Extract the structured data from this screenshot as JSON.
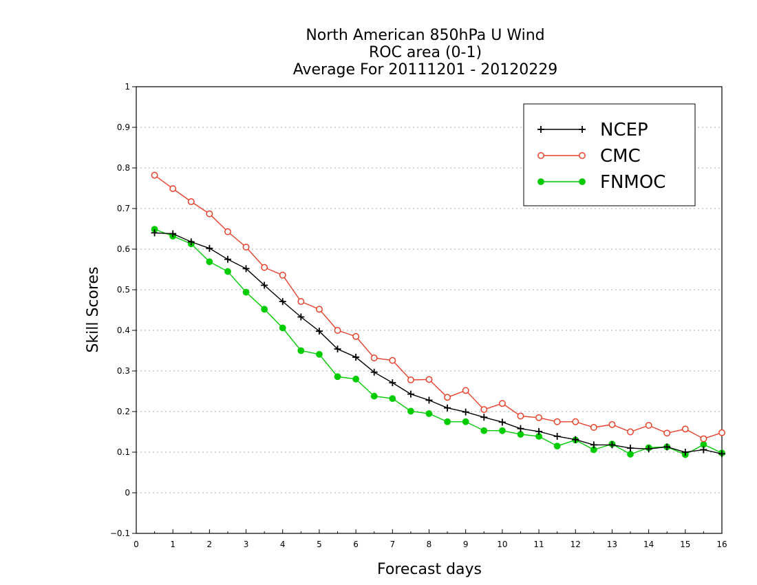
{
  "chart_data": {
    "type": "line",
    "title_lines": [
      "North American 850hPa U Wind",
      "ROC area (0-1)",
      "Average For 20111201 - 20120229"
    ],
    "xlabel": "Forecast days",
    "ylabel": "Skill Scores",
    "xlim": [
      0,
      16
    ],
    "ylim": [
      -0.1,
      1
    ],
    "x_ticks": [
      "0",
      "1",
      "2",
      "3",
      "4",
      "5",
      "6",
      "7",
      "8",
      "9",
      "10",
      "11",
      "12",
      "13",
      "14",
      "15",
      "16"
    ],
    "y_ticks": [
      "−0.1",
      "0",
      "0.1",
      "0.2",
      "0.3",
      "0.4",
      "0.5",
      "0.6",
      "0.7",
      "0.8",
      "0.9",
      "1"
    ],
    "y_tick_values": [
      -0.1,
      0,
      0.1,
      0.2,
      0.3,
      0.4,
      0.5,
      0.6,
      0.7,
      0.8,
      0.9,
      1
    ],
    "grid": "horizontal dotted",
    "legend_position": "top-right",
    "x": [
      0.5,
      1,
      1.5,
      2,
      2.5,
      3,
      3.5,
      4,
      4.5,
      5,
      5.5,
      6,
      6.5,
      7,
      7.5,
      8,
      8.5,
      9,
      9.5,
      10,
      10.5,
      11,
      11.5,
      12,
      12.5,
      13,
      13.5,
      14,
      14.5,
      15,
      15.5,
      16
    ],
    "series": [
      {
        "name": "NCEP",
        "color": "#000000",
        "marker": "plus",
        "values": [
          0.64,
          0.638,
          0.618,
          0.602,
          0.575,
          0.552,
          0.511,
          0.471,
          0.433,
          0.398,
          0.354,
          0.334,
          0.297,
          0.271,
          0.243,
          0.228,
          0.209,
          0.199,
          0.186,
          0.174,
          0.158,
          0.151,
          0.139,
          0.131,
          0.118,
          0.118,
          0.11,
          0.108,
          0.113,
          0.1,
          0.106,
          0.096
        ]
      },
      {
        "name": "CMC",
        "color": "#e8402a",
        "marker": "open-circle",
        "values": [
          0.782,
          0.749,
          0.717,
          0.687,
          0.643,
          0.605,
          0.555,
          0.536,
          0.471,
          0.452,
          0.4,
          0.385,
          0.332,
          0.326,
          0.278,
          0.279,
          0.235,
          0.252,
          0.205,
          0.22,
          0.189,
          0.185,
          0.175,
          0.175,
          0.161,
          0.168,
          0.15,
          0.166,
          0.147,
          0.157,
          0.133,
          0.148
        ]
      },
      {
        "name": "FNMOC",
        "color": "#00cc00",
        "marker": "filled-circle",
        "values": [
          0.649,
          0.632,
          0.613,
          0.569,
          0.545,
          0.494,
          0.452,
          0.406,
          0.35,
          0.341,
          0.286,
          0.28,
          0.238,
          0.232,
          0.201,
          0.195,
          0.175,
          0.175,
          0.153,
          0.153,
          0.144,
          0.139,
          0.115,
          0.13,
          0.106,
          0.12,
          0.095,
          0.111,
          0.113,
          0.094,
          0.119,
          0.098
        ]
      }
    ]
  }
}
